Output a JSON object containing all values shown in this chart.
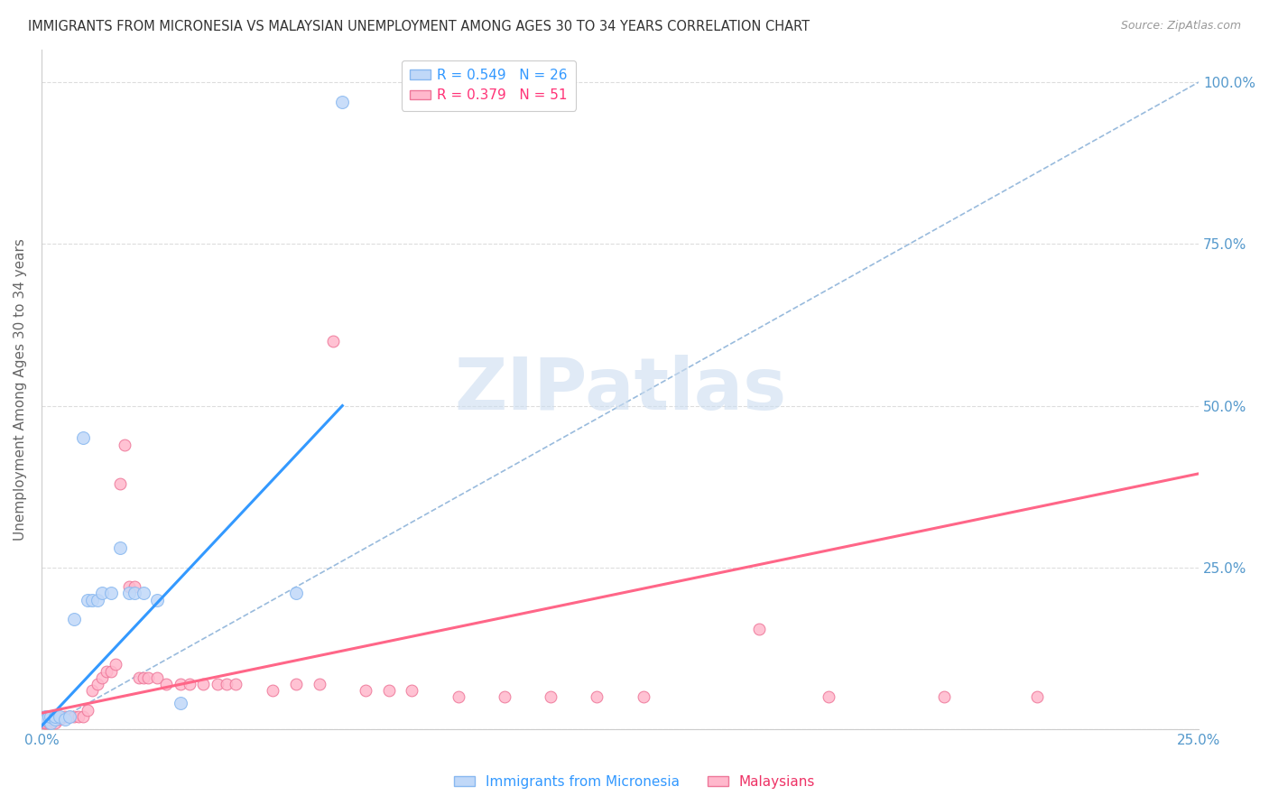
{
  "title": "IMMIGRANTS FROM MICRONESIA VS MALAYSIAN UNEMPLOYMENT AMONG AGES 30 TO 34 YEARS CORRELATION CHART",
  "source": "Source: ZipAtlas.com",
  "ylabel": "Unemployment Among Ages 30 to 34 years",
  "legend_title_micronesia": "Immigrants from Micronesia",
  "legend_title_malaysians": "Malaysians",
  "watermark": "ZIPatlas",
  "xlim": [
    0.0,
    0.25
  ],
  "ylim": [
    0.0,
    1.05
  ],
  "ytick_positions": [
    0.0,
    0.25,
    0.5,
    0.75,
    1.0
  ],
  "ytick_labels": [
    "",
    "25.0%",
    "50.0%",
    "75.0%",
    "100.0%"
  ],
  "xtick_positions": [
    0.0,
    0.05,
    0.1,
    0.15,
    0.2,
    0.25
  ],
  "xtick_labels": [
    "0.0%",
    "",
    "",
    "",
    "",
    "25.0%"
  ],
  "blue_scatter": [
    [
      0.0008,
      0.02
    ],
    [
      0.001,
      0.015
    ],
    [
      0.0015,
      0.02
    ],
    [
      0.002,
      0.01
    ],
    [
      0.002,
      0.02
    ],
    [
      0.003,
      0.015
    ],
    [
      0.003,
      0.02
    ],
    [
      0.004,
      0.02
    ],
    [
      0.005,
      0.015
    ],
    [
      0.006,
      0.02
    ],
    [
      0.007,
      0.17
    ],
    [
      0.009,
      0.45
    ],
    [
      0.01,
      0.2
    ],
    [
      0.011,
      0.2
    ],
    [
      0.012,
      0.2
    ],
    [
      0.013,
      0.21
    ],
    [
      0.015,
      0.21
    ],
    [
      0.017,
      0.28
    ],
    [
      0.019,
      0.21
    ],
    [
      0.02,
      0.21
    ],
    [
      0.022,
      0.21
    ],
    [
      0.025,
      0.2
    ],
    [
      0.03,
      0.04
    ],
    [
      0.055,
      0.21
    ],
    [
      0.065,
      0.97
    ]
  ],
  "pink_scatter": [
    [
      0.0005,
      0.01
    ],
    [
      0.001,
      0.01
    ],
    [
      0.0015,
      0.01
    ],
    [
      0.002,
      0.015
    ],
    [
      0.002,
      0.02
    ],
    [
      0.003,
      0.01
    ],
    [
      0.003,
      0.02
    ],
    [
      0.004,
      0.015
    ],
    [
      0.005,
      0.02
    ],
    [
      0.006,
      0.02
    ],
    [
      0.007,
      0.02
    ],
    [
      0.008,
      0.02
    ],
    [
      0.009,
      0.02
    ],
    [
      0.01,
      0.03
    ],
    [
      0.011,
      0.06
    ],
    [
      0.012,
      0.07
    ],
    [
      0.013,
      0.08
    ],
    [
      0.014,
      0.09
    ],
    [
      0.015,
      0.09
    ],
    [
      0.016,
      0.1
    ],
    [
      0.017,
      0.38
    ],
    [
      0.018,
      0.44
    ],
    [
      0.019,
      0.22
    ],
    [
      0.02,
      0.22
    ],
    [
      0.021,
      0.08
    ],
    [
      0.022,
      0.08
    ],
    [
      0.023,
      0.08
    ],
    [
      0.025,
      0.08
    ],
    [
      0.027,
      0.07
    ],
    [
      0.03,
      0.07
    ],
    [
      0.032,
      0.07
    ],
    [
      0.035,
      0.07
    ],
    [
      0.038,
      0.07
    ],
    [
      0.04,
      0.07
    ],
    [
      0.042,
      0.07
    ],
    [
      0.05,
      0.06
    ],
    [
      0.055,
      0.07
    ],
    [
      0.06,
      0.07
    ],
    [
      0.063,
      0.6
    ],
    [
      0.07,
      0.06
    ],
    [
      0.075,
      0.06
    ],
    [
      0.08,
      0.06
    ],
    [
      0.09,
      0.05
    ],
    [
      0.1,
      0.05
    ],
    [
      0.11,
      0.05
    ],
    [
      0.12,
      0.05
    ],
    [
      0.13,
      0.05
    ],
    [
      0.155,
      0.155
    ],
    [
      0.17,
      0.05
    ],
    [
      0.195,
      0.05
    ],
    [
      0.215,
      0.05
    ]
  ],
  "blue_line_x": [
    0.0,
    0.065
  ],
  "blue_line_y": [
    0.005,
    0.5
  ],
  "blue_line_color": "#3399ff",
  "pink_line_x": [
    0.0,
    0.25
  ],
  "pink_line_y": [
    0.025,
    0.395
  ],
  "pink_line_color": "#ff6688",
  "diagonal_line_color": "#99bbdd",
  "diagonal_line_x": [
    0.0,
    0.25
  ],
  "diagonal_line_y": [
    0.0,
    1.0
  ],
  "background_color": "#ffffff",
  "grid_color": "#dddddd",
  "title_color": "#333333",
  "axis_color": "#5599cc"
}
